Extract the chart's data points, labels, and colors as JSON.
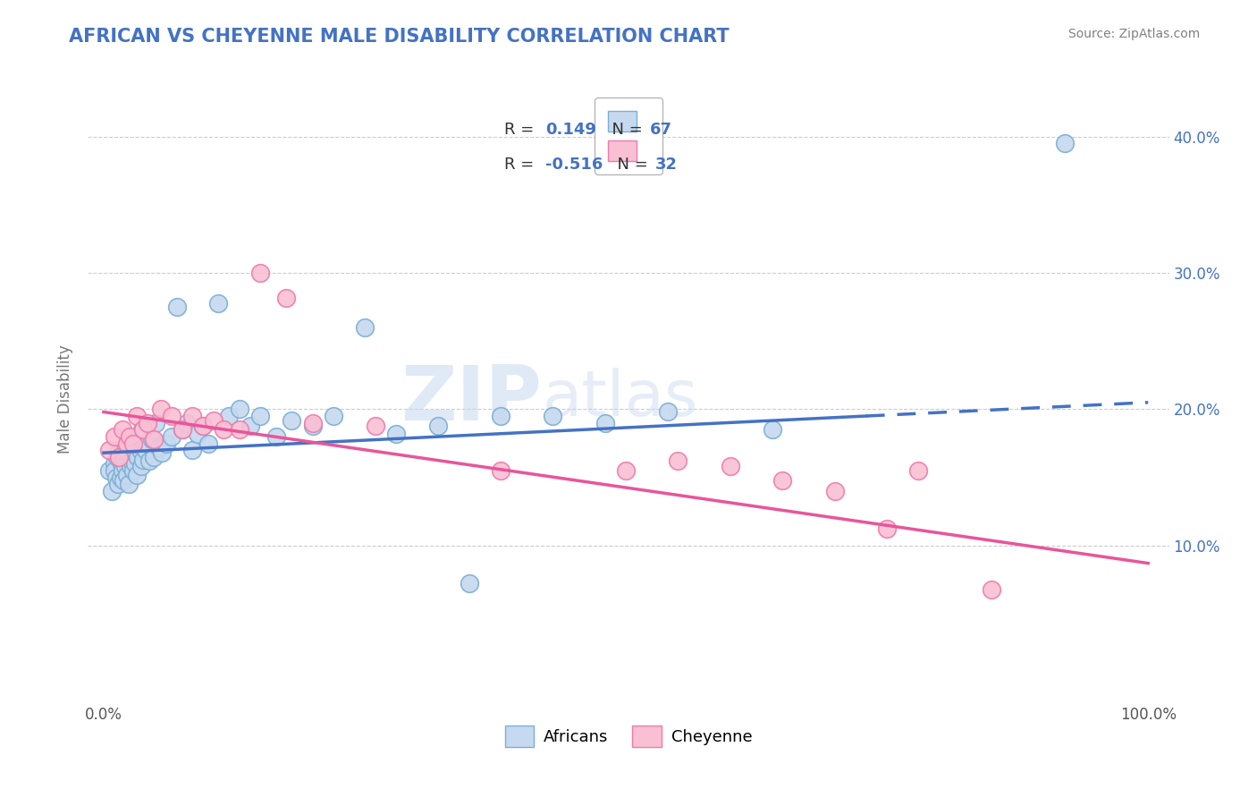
{
  "title": "AFRICAN VS CHEYENNE MALE DISABILITY CORRELATION CHART",
  "source_text": "Source: ZipAtlas.com",
  "ylabel": "Male Disability",
  "xlim": [
    0.0,
    1.0
  ],
  "ylim": [
    0.0,
    0.42
  ],
  "x_ticks": [
    0.0,
    0.1,
    0.2,
    0.3,
    0.4,
    0.5,
    0.6,
    0.7,
    0.8,
    0.9,
    1.0
  ],
  "x_tick_labels": [
    "0.0%",
    "",
    "",
    "",
    "",
    "",
    "",
    "",
    "",
    "",
    "100.0%"
  ],
  "y_ticks": [
    0.0,
    0.1,
    0.2,
    0.3,
    0.4
  ],
  "y_tick_labels": [
    "",
    "10.0%",
    "20.0%",
    "30.0%",
    "40.0%"
  ],
  "africans_fill": "#c6d9f0",
  "africans_edge": "#7bafd4",
  "cheyenne_fill": "#f9c0d4",
  "cheyenne_edge": "#f07aaa",
  "trend_african_color": "#4472c4",
  "trend_cheyenne_color": "#e8559a",
  "R_african": 0.149,
  "N_african": 67,
  "R_cheyenne": -0.516,
  "N_cheyenne": 32,
  "watermark": "ZIPatlas",
  "background_color": "#ffffff",
  "grid_color": "#cccccc",
  "title_color": "#4472c4",
  "source_color": "#808080",
  "legend_text_color": "#4472c4",
  "trend_african_start_y": 0.168,
  "trend_african_end_y": 0.205,
  "trend_cheyenne_start_y": 0.198,
  "trend_cheyenne_end_y": 0.087,
  "africans_x": [
    0.005,
    0.008,
    0.01,
    0.01,
    0.012,
    0.013,
    0.014,
    0.015,
    0.016,
    0.017,
    0.018,
    0.019,
    0.02,
    0.021,
    0.022,
    0.023,
    0.024,
    0.025,
    0.026,
    0.027,
    0.028,
    0.029,
    0.03,
    0.031,
    0.032,
    0.033,
    0.034,
    0.035,
    0.036,
    0.037,
    0.038,
    0.04,
    0.042,
    0.044,
    0.046,
    0.048,
    0.05,
    0.053,
    0.056,
    0.06,
    0.065,
    0.07,
    0.075,
    0.08,
    0.085,
    0.09,
    0.095,
    0.1,
    0.11,
    0.12,
    0.13,
    0.14,
    0.15,
    0.165,
    0.18,
    0.2,
    0.22,
    0.25,
    0.28,
    0.32,
    0.35,
    0.38,
    0.43,
    0.48,
    0.54,
    0.64,
    0.92
  ],
  "africans_y": [
    0.155,
    0.14,
    0.16,
    0.155,
    0.15,
    0.165,
    0.145,
    0.17,
    0.15,
    0.16,
    0.155,
    0.148,
    0.162,
    0.158,
    0.152,
    0.168,
    0.145,
    0.172,
    0.158,
    0.162,
    0.155,
    0.17,
    0.16,
    0.175,
    0.152,
    0.165,
    0.18,
    0.17,
    0.158,
    0.185,
    0.163,
    0.17,
    0.175,
    0.162,
    0.178,
    0.165,
    0.19,
    0.172,
    0.168,
    0.175,
    0.18,
    0.275,
    0.185,
    0.19,
    0.17,
    0.182,
    0.188,
    0.175,
    0.278,
    0.195,
    0.2,
    0.188,
    0.195,
    0.18,
    0.192,
    0.188,
    0.195,
    0.26,
    0.182,
    0.188,
    0.072,
    0.195,
    0.195,
    0.19,
    0.198,
    0.185,
    0.395
  ],
  "cheyenne_x": [
    0.005,
    0.01,
    0.015,
    0.018,
    0.022,
    0.025,
    0.028,
    0.032,
    0.038,
    0.042,
    0.048,
    0.055,
    0.065,
    0.075,
    0.085,
    0.095,
    0.105,
    0.115,
    0.13,
    0.15,
    0.175,
    0.2,
    0.26,
    0.38,
    0.5,
    0.55,
    0.6,
    0.65,
    0.7,
    0.75,
    0.78,
    0.85
  ],
  "cheyenne_y": [
    0.17,
    0.18,
    0.165,
    0.185,
    0.175,
    0.18,
    0.175,
    0.195,
    0.185,
    0.19,
    0.178,
    0.2,
    0.195,
    0.185,
    0.195,
    0.188,
    0.192,
    0.185,
    0.185,
    0.3,
    0.282,
    0.19,
    0.188,
    0.155,
    0.155,
    0.162,
    0.158,
    0.148,
    0.14,
    0.112,
    0.155,
    0.068
  ]
}
